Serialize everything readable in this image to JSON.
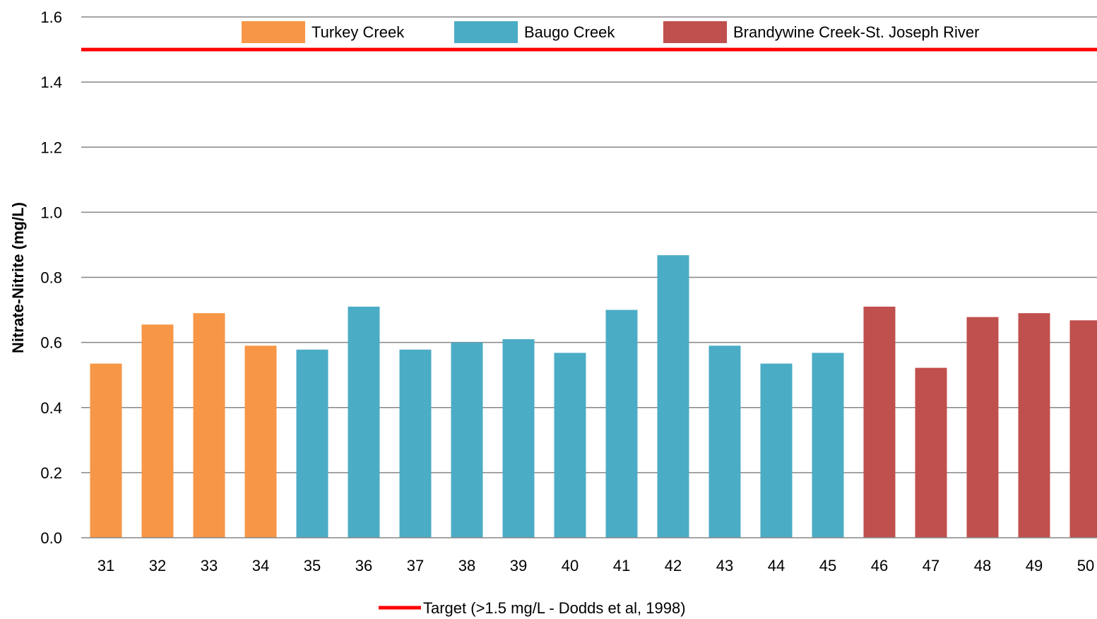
{
  "chart_data": {
    "type": "bar",
    "title": "",
    "xlabel": "",
    "ylabel": "Nitrate-Nitrite (mg/L)",
    "ylim": [
      0,
      1.6
    ],
    "yticks": [
      "0.0",
      "0.2",
      "0.4",
      "0.6",
      "0.8",
      "1.0",
      "1.2",
      "1.4",
      "1.6"
    ],
    "grid": true,
    "categories": [
      "31",
      "32",
      "33",
      "34",
      "35",
      "36",
      "37",
      "38",
      "39",
      "40",
      "41",
      "42",
      "43",
      "44",
      "45",
      "46",
      "47",
      "48",
      "49",
      "50"
    ],
    "values": [
      0.535,
      0.655,
      0.69,
      0.59,
      0.578,
      0.71,
      0.578,
      0.6,
      0.61,
      0.568,
      0.7,
      0.868,
      0.59,
      0.535,
      0.568,
      0.71,
      0.522,
      0.678,
      0.69,
      0.668
    ],
    "groups": [
      {
        "name": "Turkey Creek",
        "color": "#F79646",
        "categories": [
          "31",
          "32",
          "33",
          "34"
        ]
      },
      {
        "name": "Baugo Creek",
        "color": "#4BACC6",
        "categories": [
          "35",
          "36",
          "37",
          "38",
          "39",
          "40",
          "41",
          "42",
          "43",
          "44",
          "45"
        ]
      },
      {
        "name": "Brandywine Creek-St. Joseph River",
        "color": "#C0504D",
        "categories": [
          "46",
          "47",
          "48",
          "49",
          "50"
        ]
      }
    ],
    "target": {
      "value": 1.5,
      "label": "Target (>1.5 mg/L - Dodds et al, 1998)",
      "color": "#FF0000"
    },
    "legend_position": "top",
    "target_legend_position": "bottom"
  }
}
